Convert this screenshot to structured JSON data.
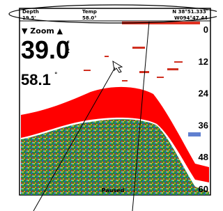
{
  "header": {
    "depth_label": "Depth",
    "depth_value": "19.5'",
    "temp_label": "Temp",
    "temp_value": "58.0°",
    "lat": "N 38°51.333'",
    "lon": "W094°47.44"
  },
  "zoom": "▼ Zoom ▲",
  "depth_reading": "39.0",
  "depth_unit_top": "f",
  "depth_unit_bottom": "t",
  "temp_reading": "58.1",
  "temp_unit": "°",
  "scale": [
    "0",
    "12",
    "24",
    "36",
    "48",
    "60"
  ],
  "status": "Paused"
}
